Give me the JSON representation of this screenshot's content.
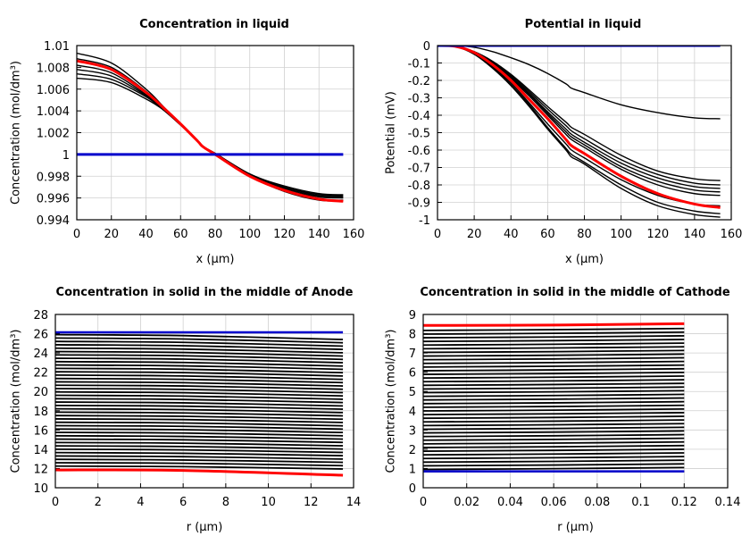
{
  "colors": {
    "black_series": "#000000",
    "highlight": "#ff0000",
    "baseline": "#0000cc",
    "grid": "#d0d0d0"
  },
  "chart_data": [
    {
      "type": "line",
      "title": "Concentration in liquid",
      "xlabel": "x (µm)",
      "ylabel": "Concentration (mol/dm³)",
      "xlim": [
        0,
        160
      ],
      "ylim": [
        0.994,
        1.01
      ],
      "xticks": [
        "0",
        "20",
        "40",
        "60",
        "80",
        "100",
        "120",
        "140",
        "160"
      ],
      "yticks": [
        "0.994",
        "0.996",
        "0.998",
        "1",
        "1.002",
        "1.004",
        "1.006",
        "1.008",
        "1.01"
      ],
      "grid": true,
      "x": [
        0,
        20,
        40,
        50,
        60,
        70,
        73,
        80,
        100,
        120,
        140,
        154
      ],
      "series": [
        {
          "color": "black",
          "values": [
            1.0093,
            1.0084,
            1.006,
            1.0044,
            1.0028,
            1.0012,
            1.0007,
            0.99995,
            0.998,
            0.9966,
            0.9958,
            0.99575
          ]
        },
        {
          "color": "black",
          "values": [
            1.0088,
            1.008,
            1.0058,
            1.0043,
            1.0028,
            1.0012,
            1.0007,
            1.0,
            0.998,
            0.9967,
            0.9959,
            0.9958
          ]
        },
        {
          "color": "black",
          "values": [
            1.0082,
            1.0075,
            1.0055,
            1.0042,
            1.0028,
            1.0012,
            1.0007,
            1.0,
            0.9981,
            0.9968,
            0.9961,
            0.996
          ]
        },
        {
          "color": "black",
          "values": [
            1.0078,
            1.0072,
            1.0054,
            1.0042,
            1.0028,
            1.0012,
            1.0007,
            1.0,
            0.9981,
            0.9969,
            0.9962,
            0.9961
          ]
        },
        {
          "color": "black",
          "values": [
            1.0074,
            1.0069,
            1.0053,
            1.0041,
            1.0027,
            1.0012,
            1.0007,
            1.0001,
            0.9982,
            0.997,
            0.9963,
            0.9962
          ]
        },
        {
          "color": "black",
          "values": [
            1.007,
            1.0066,
            1.0051,
            1.0041,
            1.0027,
            1.0012,
            1.0007,
            1.0001,
            0.9982,
            0.9971,
            0.9964,
            0.9963
          ]
        },
        {
          "color": "red",
          "values": [
            1.0086,
            1.0078,
            1.0057,
            1.0043,
            1.0028,
            1.0012,
            1.0007,
            1.0,
            0.998,
            0.9967,
            0.9959,
            0.9957
          ]
        },
        {
          "color": "blue",
          "values": [
            1,
            1,
            1,
            1,
            1,
            1,
            1,
            1,
            1,
            1,
            1,
            1
          ]
        }
      ]
    },
    {
      "type": "line",
      "title": "Potential in liquid",
      "xlabel": "x (µm)",
      "ylabel": "Potential (mV)",
      "xlim": [
        0,
        160
      ],
      "ylim": [
        -1,
        0
      ],
      "xticks": [
        "0",
        "20",
        "40",
        "60",
        "80",
        "100",
        "120",
        "140",
        "160"
      ],
      "yticks": [
        "-1",
        "-0.9",
        "-0.8",
        "-0.7",
        "-0.6",
        "-0.5",
        "-0.4",
        "-0.3",
        "-0.2",
        "-0.1",
        "0"
      ],
      "grid": true,
      "x": [
        0,
        10,
        20,
        30,
        40,
        50,
        60,
        70,
        73,
        80,
        100,
        120,
        140,
        154
      ],
      "series": [
        {
          "color": "black",
          "values": [
            0,
            0,
            -0.01,
            -0.035,
            -0.07,
            -0.11,
            -0.16,
            -0.22,
            -0.245,
            -0.27,
            -0.34,
            -0.385,
            -0.415,
            -0.42
          ]
        },
        {
          "color": "black",
          "values": [
            0,
            -0.006,
            -0.05,
            -0.13,
            -0.23,
            -0.35,
            -0.48,
            -0.6,
            -0.64,
            -0.68,
            -0.82,
            -0.92,
            -0.97,
            -0.985
          ]
        },
        {
          "color": "black",
          "values": [
            0,
            -0.006,
            -0.048,
            -0.125,
            -0.225,
            -0.34,
            -0.47,
            -0.59,
            -0.625,
            -0.67,
            -0.8,
            -0.9,
            -0.95,
            -0.965
          ]
        },
        {
          "color": "black",
          "values": [
            0,
            -0.005,
            -0.045,
            -0.12,
            -0.215,
            -0.33,
            -0.45,
            -0.565,
            -0.6,
            -0.645,
            -0.77,
            -0.86,
            -0.91,
            -0.92
          ]
        },
        {
          "color": "black",
          "values": [
            0,
            -0.005,
            -0.04,
            -0.105,
            -0.19,
            -0.29,
            -0.4,
            -0.51,
            -0.54,
            -0.585,
            -0.71,
            -0.8,
            -0.85,
            -0.86
          ]
        },
        {
          "color": "black",
          "values": [
            0,
            -0.005,
            -0.039,
            -0.1,
            -0.185,
            -0.28,
            -0.39,
            -0.495,
            -0.525,
            -0.57,
            -0.695,
            -0.78,
            -0.83,
            -0.84
          ]
        },
        {
          "color": "black",
          "values": [
            0,
            -0.005,
            -0.038,
            -0.1,
            -0.18,
            -0.275,
            -0.38,
            -0.48,
            -0.51,
            -0.555,
            -0.675,
            -0.76,
            -0.81,
            -0.82
          ]
        },
        {
          "color": "black",
          "values": [
            0,
            -0.004,
            -0.036,
            -0.095,
            -0.172,
            -0.265,
            -0.365,
            -0.46,
            -0.49,
            -0.535,
            -0.655,
            -0.74,
            -0.79,
            -0.8
          ]
        },
        {
          "color": "black",
          "values": [
            0,
            -0.004,
            -0.035,
            -0.09,
            -0.165,
            -0.255,
            -0.35,
            -0.44,
            -0.47,
            -0.51,
            -0.63,
            -0.72,
            -0.765,
            -0.775
          ]
        },
        {
          "color": "red",
          "values": [
            0,
            -0.005,
            -0.04,
            -0.11,
            -0.2,
            -0.31,
            -0.42,
            -0.54,
            -0.575,
            -0.62,
            -0.75,
            -0.85,
            -0.91,
            -0.93
          ]
        },
        {
          "color": "blue",
          "values": [
            0,
            0,
            0,
            0,
            0,
            0,
            0,
            0,
            0,
            0,
            0,
            0,
            0,
            0
          ]
        }
      ]
    },
    {
      "type": "line",
      "title": "Concentration in solid in the middle of Anode",
      "xlabel": "r (µm)",
      "ylabel": "Concentration (mol/dm³)",
      "xlim": [
        0,
        14
      ],
      "ylim": [
        10,
        28
      ],
      "xticks": [
        "0",
        "2",
        "4",
        "6",
        "8",
        "10",
        "12",
        "14"
      ],
      "yticks": [
        "10",
        "12",
        "14",
        "16",
        "18",
        "20",
        "22",
        "24",
        "26",
        "28"
      ],
      "grid": true,
      "x": [
        0,
        6,
        13.5
      ],
      "black_curves": [
        [
          25.9,
          25.8,
          25.4
        ],
        [
          25.55,
          25.45,
          25.06
        ],
        [
          25.2,
          25.1,
          24.71
        ],
        [
          24.85,
          24.75,
          24.37
        ],
        [
          24.5,
          24.4,
          24.02
        ],
        [
          24.15,
          24.05,
          23.68
        ],
        [
          23.8,
          23.71,
          23.33
        ],
        [
          23.45,
          23.36,
          22.99
        ],
        [
          23.1,
          23.01,
          22.64
        ],
        [
          22.75,
          22.66,
          22.3
        ],
        [
          22.4,
          22.31,
          21.95
        ],
        [
          22.05,
          21.96,
          21.61
        ],
        [
          21.7,
          21.61,
          21.26
        ],
        [
          21.35,
          21.26,
          20.92
        ],
        [
          21.0,
          20.91,
          20.57
        ],
        [
          20.65,
          20.57,
          20.23
        ],
        [
          20.3,
          20.22,
          19.88
        ],
        [
          19.95,
          19.87,
          19.54
        ],
        [
          19.6,
          19.52,
          19.19
        ],
        [
          19.25,
          19.17,
          18.85
        ],
        [
          18.9,
          18.82,
          18.5
        ],
        [
          18.55,
          18.47,
          18.16
        ],
        [
          18.2,
          18.12,
          17.81
        ],
        [
          17.85,
          17.77,
          17.47
        ],
        [
          17.5,
          17.42,
          17.12
        ],
        [
          17.15,
          17.08,
          16.78
        ],
        [
          16.8,
          16.73,
          16.43
        ],
        [
          16.45,
          16.38,
          16.09
        ],
        [
          16.1,
          16.03,
          15.74
        ],
        [
          15.75,
          15.68,
          15.4
        ],
        [
          15.4,
          15.33,
          15.05
        ],
        [
          15.05,
          14.98,
          14.71
        ],
        [
          14.7,
          14.63,
          14.36
        ],
        [
          14.35,
          14.28,
          14.02
        ],
        [
          14.0,
          13.93,
          13.67
        ],
        [
          13.65,
          13.58,
          13.33
        ],
        [
          13.3,
          13.23,
          12.98
        ],
        [
          12.95,
          12.88,
          12.64
        ],
        [
          12.6,
          12.54,
          12.29
        ],
        [
          12.25,
          12.19,
          11.95
        ]
      ],
      "red_curve": [
        11.85,
        11.8,
        11.3
      ],
      "blue_curve": [
        26.15,
        26.15,
        26.15
      ]
    },
    {
      "type": "line",
      "title": "Concentration in solid in the middle of Cathode",
      "xlabel": "r (µm)",
      "ylabel": "Concentration (mol/dm³)",
      "xlim": [
        0,
        0.14
      ],
      "ylim": [
        0,
        9
      ],
      "xticks": [
        "0",
        "0.02",
        "0.04",
        "0.06",
        "0.08",
        "0.1",
        "0.12",
        "0.14"
      ],
      "yticks": [
        "0",
        "1",
        "2",
        "3",
        "4",
        "5",
        "6",
        "7",
        "8",
        "9"
      ],
      "grid": true,
      "x": [
        0,
        0.06,
        0.12
      ],
      "black_curves": [
        [
          0.85,
          0.85,
          0.85
        ],
        [
          0.95,
          0.99,
          1.05
        ],
        [
          1.14,
          1.18,
          1.24
        ],
        [
          1.33,
          1.37,
          1.43
        ],
        [
          1.52,
          1.56,
          1.62
        ],
        [
          1.71,
          1.75,
          1.81
        ],
        [
          1.9,
          1.94,
          2.0
        ],
        [
          2.09,
          2.13,
          2.19
        ],
        [
          2.28,
          2.32,
          2.38
        ],
        [
          2.47,
          2.51,
          2.57
        ],
        [
          2.66,
          2.7,
          2.76
        ],
        [
          2.85,
          2.89,
          2.95
        ],
        [
          3.04,
          3.08,
          3.14
        ],
        [
          3.23,
          3.27,
          3.33
        ],
        [
          3.42,
          3.46,
          3.52
        ],
        [
          3.61,
          3.65,
          3.71
        ],
        [
          3.8,
          3.84,
          3.9
        ],
        [
          3.99,
          4.03,
          4.09
        ],
        [
          4.18,
          4.22,
          4.28
        ],
        [
          4.37,
          4.41,
          4.47
        ],
        [
          4.56,
          4.6,
          4.66
        ],
        [
          4.75,
          4.79,
          4.85
        ],
        [
          4.94,
          4.98,
          5.04
        ],
        [
          5.13,
          5.17,
          5.23
        ],
        [
          5.32,
          5.36,
          5.42
        ],
        [
          5.51,
          5.55,
          5.61
        ],
        [
          5.7,
          5.74,
          5.8
        ],
        [
          5.89,
          5.93,
          5.99
        ],
        [
          6.08,
          6.12,
          6.18
        ],
        [
          6.27,
          6.31,
          6.37
        ],
        [
          6.46,
          6.5,
          6.56
        ],
        [
          6.65,
          6.69,
          6.75
        ],
        [
          6.84,
          6.88,
          6.94
        ],
        [
          7.03,
          7.07,
          7.13
        ],
        [
          7.22,
          7.26,
          7.32
        ],
        [
          7.41,
          7.45,
          7.51
        ],
        [
          7.6,
          7.64,
          7.7
        ],
        [
          7.79,
          7.83,
          7.89
        ],
        [
          7.98,
          8.02,
          8.08
        ],
        [
          8.17,
          8.21,
          8.27
        ]
      ],
      "red_curve": [
        8.43,
        8.45,
        8.52
      ],
      "blue_curve": [
        0.85,
        0.85,
        0.85
      ]
    }
  ]
}
